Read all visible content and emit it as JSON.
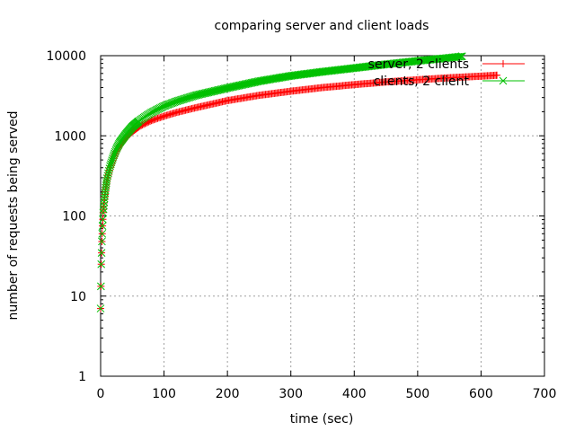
{
  "chart_data": {
    "type": "scatter",
    "title": "comparing server and client loads",
    "xlabel": "time (sec)",
    "ylabel": "number of requests being served",
    "xlim": [
      0,
      700
    ],
    "ylim": [
      1,
      10000
    ],
    "yscale": "log",
    "grid": true,
    "legend_position": "top-right",
    "x_ticks": [
      0,
      100,
      200,
      300,
      400,
      500,
      600,
      700
    ],
    "x_tick_labels": [
      "0",
      "100",
      "200",
      "300",
      "400",
      "500",
      "600",
      "700"
    ],
    "y_ticks": [
      1,
      10,
      100,
      1000,
      10000
    ],
    "y_tick_labels": [
      "1",
      "10",
      "100",
      "1000",
      "10000"
    ],
    "series": [
      {
        "name": "server, 2 clients",
        "color": "#ff0000",
        "marker": "plus",
        "points": [
          [
            0,
            7
          ],
          [
            1,
            25
          ],
          [
            2,
            48
          ],
          [
            3,
            75
          ],
          [
            4,
            110
          ],
          [
            6,
            160
          ],
          [
            8,
            215
          ],
          [
            10,
            280
          ],
          [
            15,
            400
          ],
          [
            20,
            520
          ],
          [
            25,
            640
          ],
          [
            30,
            760
          ],
          [
            40,
            950
          ],
          [
            50,
            1130
          ],
          [
            60,
            1290
          ],
          [
            70,
            1420
          ],
          [
            80,
            1550
          ],
          [
            100,
            1760
          ],
          [
            120,
            1960
          ],
          [
            150,
            2240
          ],
          [
            200,
            2750
          ],
          [
            250,
            3200
          ],
          [
            300,
            3600
          ],
          [
            350,
            4000
          ],
          [
            400,
            4350
          ],
          [
            450,
            4700
          ],
          [
            500,
            5000
          ],
          [
            550,
            5300
          ],
          [
            600,
            5550
          ],
          [
            625,
            5700
          ]
        ]
      },
      {
        "name": "clients, 2 client",
        "color": "#00c000",
        "marker": "cross",
        "points": [
          [
            0,
            7
          ],
          [
            1,
            25
          ],
          [
            2,
            48
          ],
          [
            3,
            75
          ],
          [
            4,
            110
          ],
          [
            6,
            165
          ],
          [
            8,
            225
          ],
          [
            10,
            295
          ],
          [
            15,
            420
          ],
          [
            20,
            550
          ],
          [
            25,
            690
          ],
          [
            30,
            820
          ],
          [
            40,
            1050
          ],
          [
            50,
            1300
          ],
          [
            60,
            1520
          ],
          [
            70,
            1730
          ],
          [
            80,
            1950
          ],
          [
            100,
            2350
          ],
          [
            120,
            2700
          ],
          [
            150,
            3200
          ],
          [
            200,
            3950
          ],
          [
            250,
            4800
          ],
          [
            300,
            5600
          ],
          [
            350,
            6300
          ],
          [
            400,
            7000
          ],
          [
            450,
            7800
          ],
          [
            500,
            8600
          ],
          [
            550,
            9400
          ],
          [
            570,
            9800
          ]
        ]
      }
    ]
  }
}
